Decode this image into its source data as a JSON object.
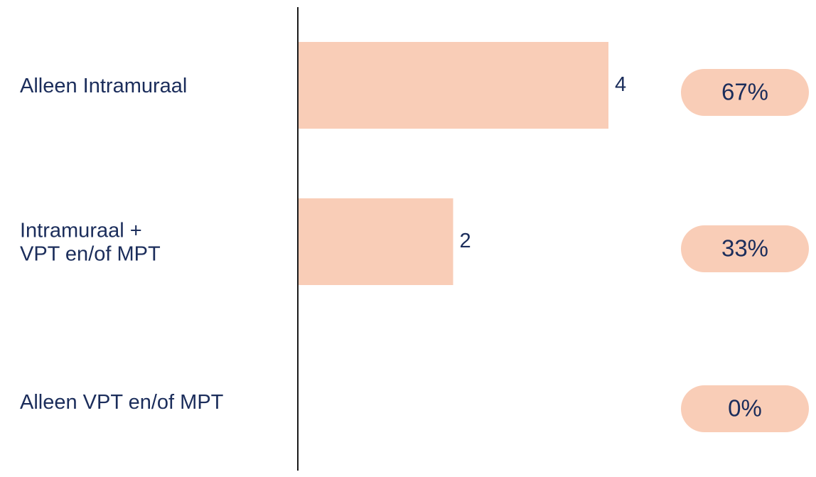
{
  "colors": {
    "bar": "#f9cdb7",
    "text": "#1b2d5b",
    "axis": "#1a1a1a",
    "pill": "#f9cdb7"
  },
  "chart_data": {
    "type": "bar",
    "orientation": "horizontal",
    "title": "",
    "xlabel": "",
    "ylabel": "",
    "grid": false,
    "legend": "none",
    "xlim": [
      0,
      4
    ],
    "categories": [
      [
        "Alleen Intramuraal"
      ],
      [
        "Intramuraal +",
        "VPT en/of MPT"
      ],
      [
        "Alleen VPT en/of MPT"
      ]
    ],
    "values": [
      4,
      2,
      0
    ],
    "value_labels": [
      "4",
      "2",
      ""
    ],
    "percentages": [
      "67%",
      "33%",
      "0%"
    ]
  }
}
